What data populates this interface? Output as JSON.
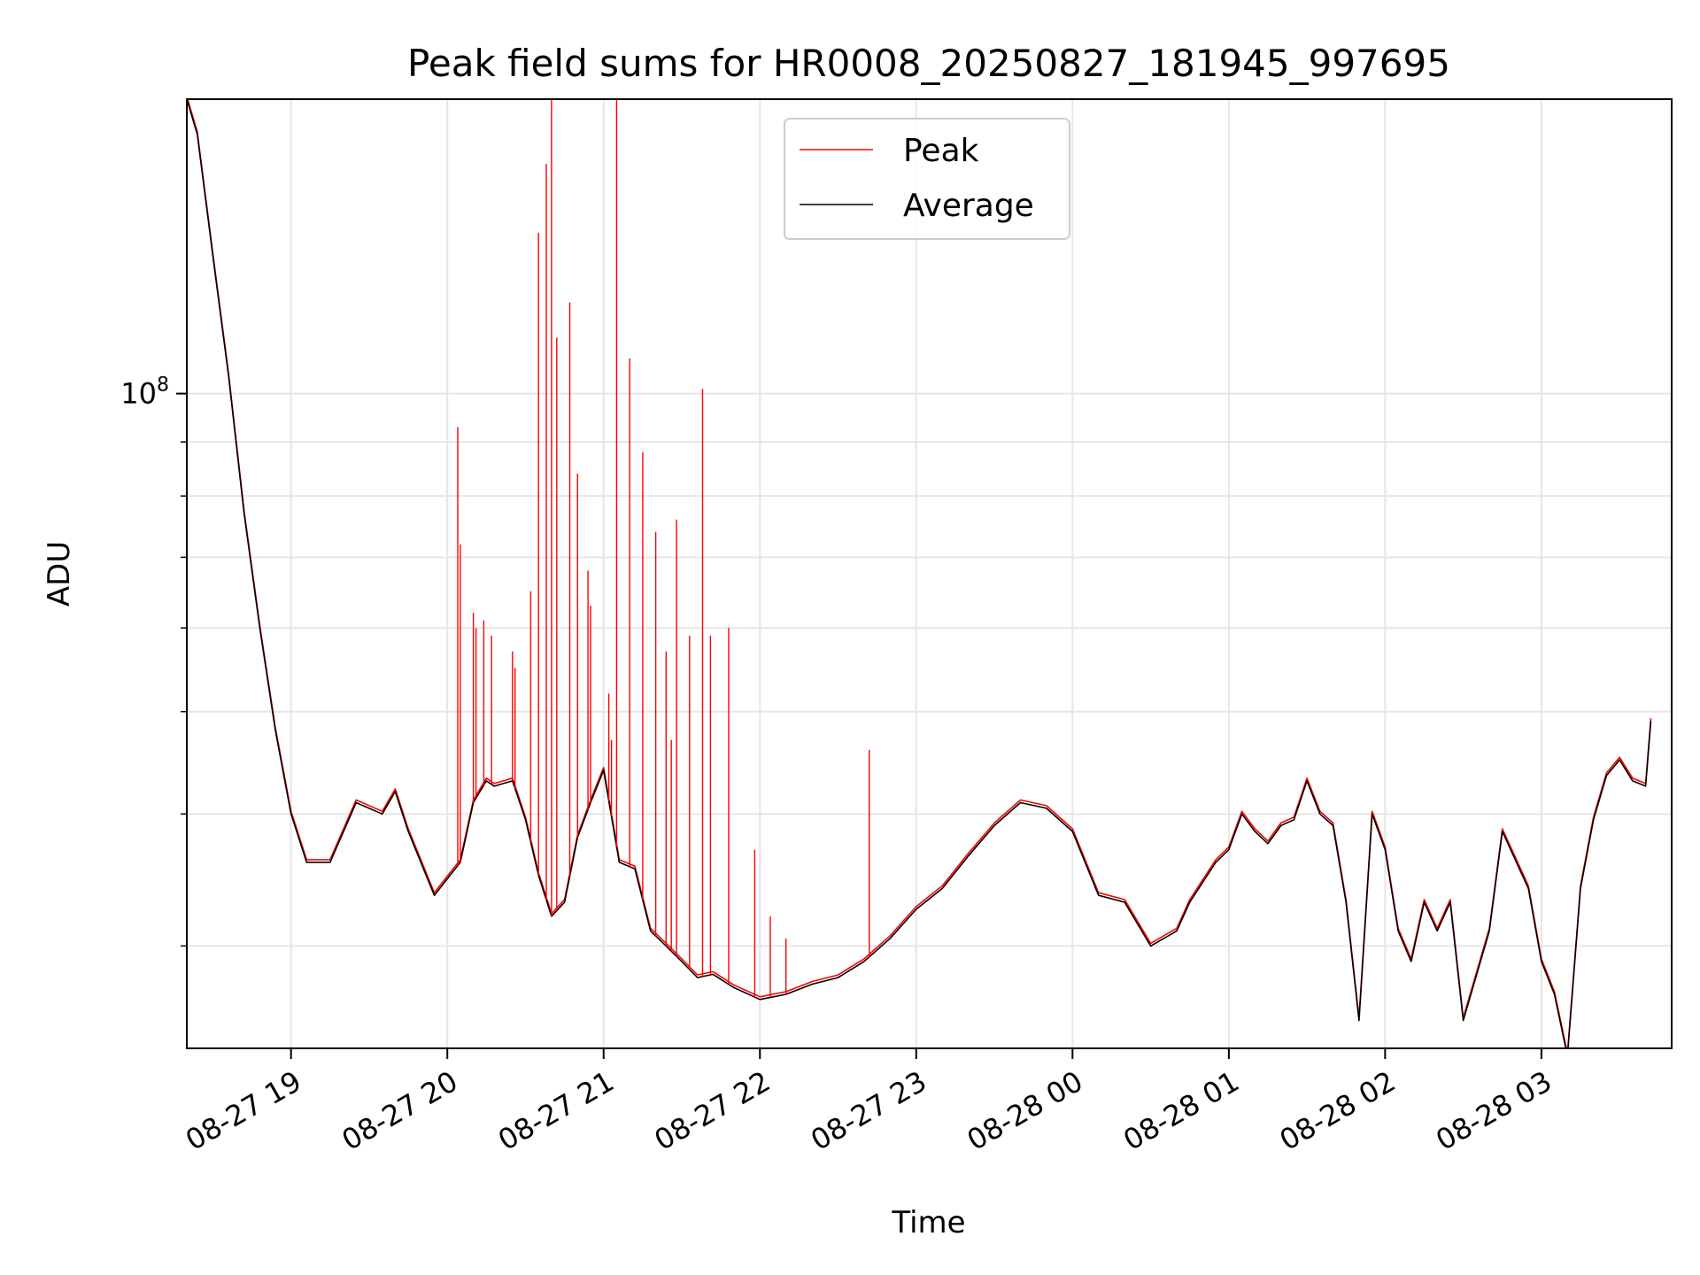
{
  "chart_data": {
    "type": "line",
    "title": "Peak field sums for HR0008_20250827_181945_997695",
    "xlabel": "Time",
    "ylabel": "ADU",
    "y_scale": "log",
    "ylim": [
      24000000,
      190000000
    ],
    "xlim": [
      "2025-08-27 18:20",
      "2025-08-28 03:50"
    ],
    "grid": true,
    "legend_position": "top-center",
    "x_tick_labels": [
      "08-27 19",
      "08-27 20",
      "08-27 21",
      "08-27 22",
      "08-27 23",
      "08-28 00",
      "08-28 01",
      "08-28 02",
      "08-28 03"
    ],
    "x_tick_times": [
      "2025-08-27 19:00",
      "2025-08-27 20:00",
      "2025-08-27 21:00",
      "2025-08-27 22:00",
      "2025-08-27 23:00",
      "2025-08-28 00:00",
      "2025-08-28 01:00",
      "2025-08-28 02:00",
      "2025-08-28 03:00"
    ],
    "y_major_ticks": [
      {
        "label_base": "10",
        "label_exp": "8",
        "value": 100000000
      }
    ],
    "y_minor_ticks": [
      30000000,
      40000000,
      50000000,
      60000000,
      70000000,
      80000000,
      90000000,
      200000000
    ],
    "series": [
      {
        "name": "Average",
        "color": "#000000",
        "x": [
          "2025-08-27 18:20",
          "2025-08-27 18:24",
          "2025-08-27 18:30",
          "2025-08-27 18:36",
          "2025-08-27 18:42",
          "2025-08-27 18:48",
          "2025-08-27 18:54",
          "2025-08-27 19:00",
          "2025-08-27 19:06",
          "2025-08-27 19:15",
          "2025-08-27 19:25",
          "2025-08-27 19:35",
          "2025-08-27 19:40",
          "2025-08-27 19:45",
          "2025-08-27 19:55",
          "2025-08-27 20:05",
          "2025-08-27 20:10",
          "2025-08-27 20:15",
          "2025-08-27 20:18",
          "2025-08-27 20:25",
          "2025-08-27 20:30",
          "2025-08-27 20:35",
          "2025-08-27 20:40",
          "2025-08-27 20:45",
          "2025-08-27 20:50",
          "2025-08-27 20:55",
          "2025-08-27 21:00",
          "2025-08-27 21:06",
          "2025-08-27 21:12",
          "2025-08-27 21:18",
          "2025-08-27 21:24",
          "2025-08-27 21:30",
          "2025-08-27 21:36",
          "2025-08-27 21:42",
          "2025-08-27 21:50",
          "2025-08-27 22:00",
          "2025-08-27 22:10",
          "2025-08-27 22:20",
          "2025-08-27 22:30",
          "2025-08-27 22:40",
          "2025-08-27 22:50",
          "2025-08-27 23:00",
          "2025-08-27 23:10",
          "2025-08-27 23:20",
          "2025-08-27 23:30",
          "2025-08-27 23:40",
          "2025-08-27 23:50",
          "2025-08-28 00:00",
          "2025-08-28 00:10",
          "2025-08-28 00:20",
          "2025-08-28 00:30",
          "2025-08-28 00:40",
          "2025-08-28 00:45",
          "2025-08-28 00:55",
          "2025-08-28 01:00",
          "2025-08-28 01:05",
          "2025-08-28 01:10",
          "2025-08-28 01:15",
          "2025-08-28 01:20",
          "2025-08-28 01:25",
          "2025-08-28 01:30",
          "2025-08-28 01:35",
          "2025-08-28 01:40",
          "2025-08-28 01:45",
          "2025-08-28 01:50",
          "2025-08-28 01:55",
          "2025-08-28 02:00",
          "2025-08-28 02:05",
          "2025-08-28 02:10",
          "2025-08-28 02:15",
          "2025-08-28 02:20",
          "2025-08-28 02:25",
          "2025-08-28 02:30",
          "2025-08-28 02:40",
          "2025-08-28 02:45",
          "2025-08-28 02:55",
          "2025-08-28 03:00",
          "2025-08-28 03:05",
          "2025-08-28 03:10",
          "2025-08-28 03:15",
          "2025-08-28 03:20",
          "2025-08-28 03:25",
          "2025-08-28 03:30",
          "2025-08-28 03:35",
          "2025-08-28 03:40",
          "2025-08-28 03:42"
        ],
        "values": [
          190000000,
          176000000,
          135000000,
          104000000,
          77000000,
          60000000,
          48000000,
          40000000,
          36000000,
          36000000,
          41000000,
          40000000,
          42000000,
          38500000,
          33500000,
          36000000,
          41000000,
          43000000,
          42500000,
          43000000,
          39500000,
          35000000,
          32000000,
          33000000,
          38000000,
          41000000,
          44000000,
          36000000,
          35500000,
          31000000,
          30000000,
          29000000,
          28000000,
          28200000,
          27400000,
          26700000,
          27000000,
          27600000,
          28000000,
          29000000,
          30500000,
          32500000,
          34000000,
          36500000,
          39000000,
          41000000,
          40500000,
          38500000,
          33500000,
          33000000,
          30000000,
          31000000,
          33000000,
          36000000,
          37000000,
          40000000,
          38500000,
          37500000,
          39000000,
          39500000,
          43000000,
          40000000,
          39000000,
          33000000,
          25500000,
          40000000,
          37000000,
          31000000,
          29000000,
          33000000,
          31000000,
          33000000,
          25500000,
          31000000,
          38500000,
          34000000,
          29000000,
          27000000,
          23600000,
          34000000,
          39500000,
          43500000,
          45000000,
          43000000,
          42500000,
          49000000
        ]
      },
      {
        "name": "Peak",
        "color": "#ff0000",
        "spikes": [
          {
            "x": "2025-08-27 20:04",
            "value": 93000000
          },
          {
            "x": "2025-08-27 20:05",
            "value": 72000000
          },
          {
            "x": "2025-08-27 20:10",
            "value": 62000000
          },
          {
            "x": "2025-08-27 20:11",
            "value": 60000000
          },
          {
            "x": "2025-08-27 20:14",
            "value": 61000000
          },
          {
            "x": "2025-08-27 20:17",
            "value": 59000000
          },
          {
            "x": "2025-08-27 20:25",
            "value": 57000000
          },
          {
            "x": "2025-08-27 20:26",
            "value": 55000000
          },
          {
            "x": "2025-08-27 20:32",
            "value": 65000000
          },
          {
            "x": "2025-08-27 20:35",
            "value": 142000000
          },
          {
            "x": "2025-08-27 20:38",
            "value": 165000000
          },
          {
            "x": "2025-08-27 20:40",
            "value": 202000000
          },
          {
            "x": "2025-08-27 20:42",
            "value": 113000000
          },
          {
            "x": "2025-08-27 20:47",
            "value": 122000000
          },
          {
            "x": "2025-08-27 20:50",
            "value": 84000000
          },
          {
            "x": "2025-08-27 20:54",
            "value": 68000000
          },
          {
            "x": "2025-08-27 20:55",
            "value": 63000000
          },
          {
            "x": "2025-08-27 21:02",
            "value": 52000000
          },
          {
            "x": "2025-08-27 21:03",
            "value": 47000000
          },
          {
            "x": "2025-08-27 21:05",
            "value": 205000000
          },
          {
            "x": "2025-08-27 21:10",
            "value": 108000000
          },
          {
            "x": "2025-08-27 21:15",
            "value": 88000000
          },
          {
            "x": "2025-08-27 21:20",
            "value": 74000000
          },
          {
            "x": "2025-08-27 21:24",
            "value": 57000000
          },
          {
            "x": "2025-08-27 21:26",
            "value": 47000000
          },
          {
            "x": "2025-08-27 21:28",
            "value": 76000000
          },
          {
            "x": "2025-08-27 21:33",
            "value": 59000000
          },
          {
            "x": "2025-08-27 21:38",
            "value": 101000000
          },
          {
            "x": "2025-08-27 21:41",
            "value": 59000000
          },
          {
            "x": "2025-08-27 21:48",
            "value": 60000000
          },
          {
            "x": "2025-08-27 21:58",
            "value": 37000000
          },
          {
            "x": "2025-08-27 22:04",
            "value": 32000000
          },
          {
            "x": "2025-08-27 22:10",
            "value": 30500000
          },
          {
            "x": "2025-08-27 22:42",
            "value": 46000000
          }
        ]
      }
    ]
  }
}
